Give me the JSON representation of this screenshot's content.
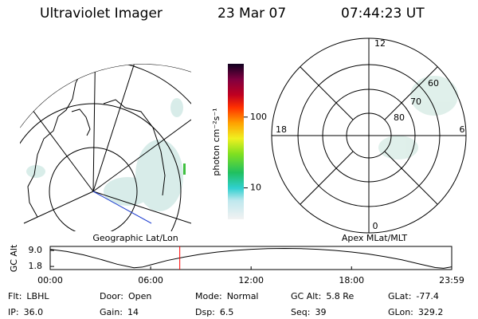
{
  "header": {
    "title": "Ultraviolet Imager",
    "date": "23 Mar 07",
    "time": "07:44:23 UT"
  },
  "map": {
    "label": "Geographic Lat/Lon"
  },
  "colorbar": {
    "label": "photon cm⁻²s⁻¹",
    "scale": "log",
    "lim": [
      3.6,
      565
    ],
    "ticks": [
      10,
      100
    ]
  },
  "polar": {
    "label": "Apex MLat/MLT",
    "hours": [
      "12",
      "18",
      "6",
      "0"
    ],
    "lats": [
      "60",
      "70",
      "80"
    ]
  },
  "chart_data": {
    "type": "line",
    "ylabel": "GC Alt",
    "x": [
      0,
      1,
      2,
      3,
      4,
      5,
      5.5,
      6,
      7,
      8,
      9,
      10,
      11,
      12,
      13,
      14,
      15,
      16,
      17,
      18,
      19,
      20,
      21,
      22,
      23,
      23.5,
      23.98
    ],
    "values": [
      9.5,
      8.5,
      7.0,
      5.0,
      2.8,
      1.2,
      1.5,
      2.5,
      4.5,
      6.0,
      7.3,
      8.3,
      9.0,
      9.5,
      9.8,
      9.9,
      9.8,
      9.5,
      9.0,
      8.3,
      7.4,
      6.2,
      4.8,
      3.0,
      1.3,
      1.0,
      1.6
    ],
    "color": "#000000",
    "marker_x": 7.74,
    "marker_color": "#ff0000",
    "xlim": [
      0,
      23.983
    ],
    "xticks": [
      {
        "value": 0,
        "label": "00:00"
      },
      {
        "value": 6,
        "label": "06:00"
      },
      {
        "value": 12,
        "label": "12:00"
      },
      {
        "value": 18,
        "label": "18:00"
      },
      {
        "value": 23.983,
        "label": "23:59"
      }
    ],
    "ylim": [
      0.4,
      10.8
    ],
    "yticks": [
      {
        "value": 9,
        "label": "9.0"
      },
      {
        "value": 1.8,
        "label": "1.8"
      }
    ]
  },
  "info": [
    [
      [
        "Flt:",
        "LBHL"
      ],
      [
        "Door:",
        "Open"
      ],
      [
        "Mode:",
        "Normal"
      ],
      [
        "GC Alt:",
        "5.8 Re"
      ],
      [
        "GLat:",
        "-77.4"
      ]
    ],
    [
      [
        "IP:",
        "36.0"
      ],
      [
        "Gain:",
        "14"
      ],
      [
        "Dsp:",
        "6.5"
      ],
      [
        "Seq:",
        "39"
      ],
      [
        "GLon:",
        "329.2"
      ]
    ]
  ]
}
